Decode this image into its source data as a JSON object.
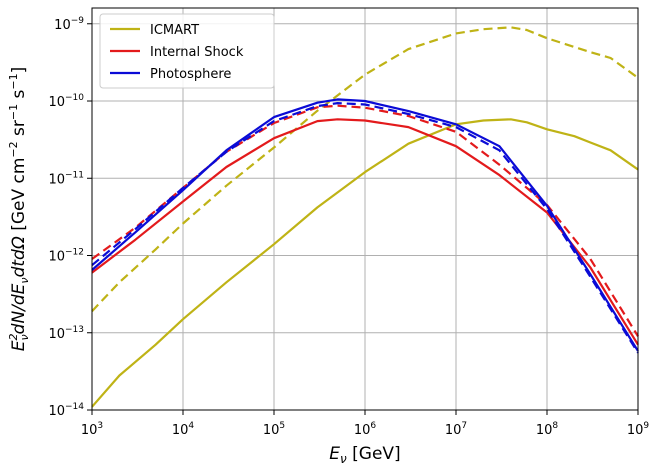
{
  "chart_data": {
    "type": "line",
    "title": "",
    "xlabel": {
      "base": "E",
      "sub": "ν",
      "rest": " [GeV]"
    },
    "ylabel": {
      "expr_a": "E",
      "expr_a_sup": "2",
      "expr_a_sub": "ν",
      "expr_b": "dN/dE",
      "expr_b_sub": "ν",
      "expr_c": "dtdΩ",
      "units_a": " [GeV cm",
      "units_a_sup": "−2",
      "units_b": " sr",
      "units_b_sup": "−1",
      "units_c": " s",
      "units_c_sup": "−1",
      "units_d": "]"
    },
    "x_scale": "log",
    "y_scale": "log",
    "xlim": [
      1000,
      1000000000
    ],
    "ylim": [
      1e-14,
      1.6e-09
    ],
    "grid": true,
    "legend_position": "top-left",
    "x_ticks": [
      {
        "value": 1000,
        "base": "10",
        "exp": "3"
      },
      {
        "value": 10000,
        "base": "10",
        "exp": "4"
      },
      {
        "value": 100000,
        "base": "10",
        "exp": "5"
      },
      {
        "value": 1000000,
        "base": "10",
        "exp": "6"
      },
      {
        "value": 10000000,
        "base": "10",
        "exp": "7"
      },
      {
        "value": 100000000,
        "base": "10",
        "exp": "8"
      },
      {
        "value": 1000000000,
        "base": "10",
        "exp": "9"
      }
    ],
    "y_ticks": [
      {
        "value": 1e-14,
        "base": "10",
        "exp": "−14"
      },
      {
        "value": 1e-13,
        "base": "10",
        "exp": "−13"
      },
      {
        "value": 1e-12,
        "base": "10",
        "exp": "−12"
      },
      {
        "value": 1e-11,
        "base": "10",
        "exp": "−11"
      },
      {
        "value": 1e-10,
        "base": "10",
        "exp": "−10"
      },
      {
        "value": 1e-09,
        "base": "10",
        "exp": "−9"
      }
    ],
    "legend": [
      {
        "label": "ICMART",
        "color": "#bfb316"
      },
      {
        "label": "Internal Shock",
        "color": "#e31a1c"
      },
      {
        "label": "Photosphere",
        "color": "#0b0bd6"
      }
    ],
    "series": [
      {
        "color": "#bfb316",
        "dash": "solid",
        "x": [
          1000,
          2000,
          5000,
          10000,
          30000,
          100000,
          300000,
          1000000,
          3000000,
          10000000,
          20000000,
          40000000,
          60000000,
          100000000,
          200000000,
          300000000,
          500000000,
          1000000000
        ],
        "y": [
          1.1e-14,
          2.8e-14,
          7e-14,
          1.5e-13,
          4.5e-13,
          1.4e-12,
          4.2e-12,
          1.2e-11,
          2.8e-11,
          5e-11,
          5.6e-11,
          5.8e-11,
          5.3e-11,
          4.3e-11,
          3.5e-11,
          2.9e-11,
          2.3e-11,
          1.3e-11
        ]
      },
      {
        "color": "#bfb316",
        "dash": "dashed",
        "x": [
          1000,
          2000,
          5000,
          10000,
          30000,
          100000,
          300000,
          1000000,
          3000000,
          10000000,
          20000000,
          40000000,
          60000000,
          100000000,
          200000000,
          300000000,
          500000000,
          1000000000
        ],
        "y": [
          1.9e-13,
          4.5e-13,
          1.2e-12,
          2.6e-12,
          8e-12,
          2.5e-11,
          7.5e-11,
          2.2e-10,
          4.7e-10,
          7.5e-10,
          8.5e-10,
          9e-10,
          8.3e-10,
          6.5e-10,
          5e-10,
          4.3e-10,
          3.6e-10,
          2e-10
        ]
      },
      {
        "color": "#e31a1c",
        "dash": "solid",
        "x": [
          1000,
          3000,
          10000,
          30000,
          100000,
          300000,
          500000,
          1000000,
          3000000,
          10000000,
          30000000,
          100000000,
          300000000,
          1000000000
        ],
        "y": [
          6e-13,
          1.6e-12,
          5e-12,
          1.4e-11,
          3.3e-11,
          5.5e-11,
          5.8e-11,
          5.6e-11,
          4.6e-11,
          2.6e-11,
          1.1e-11,
          3.6e-12,
          7e-13,
          7e-14
        ]
      },
      {
        "color": "#e31a1c",
        "dash": "dashed",
        "x": [
          1000,
          3000,
          10000,
          30000,
          100000,
          300000,
          500000,
          1000000,
          3000000,
          10000000,
          30000000,
          100000000,
          300000000,
          1000000000
        ],
        "y": [
          9e-13,
          2.3e-12,
          7.5e-12,
          2.2e-11,
          5.2e-11,
          8.3e-11,
          8.7e-11,
          8.2e-11,
          6.4e-11,
          4e-11,
          1.5e-11,
          4.5e-12,
          9e-13,
          9e-14
        ]
      },
      {
        "color": "#0b0bd6",
        "dash": "solid",
        "x": [
          1000,
          3000,
          10000,
          30000,
          100000,
          300000,
          500000,
          1000000,
          3000000,
          10000000,
          30000000,
          100000000,
          300000000,
          1000000000
        ],
        "y": [
          6.5e-13,
          2e-12,
          7e-12,
          2.3e-11,
          6.2e-11,
          9.5e-11,
          1.05e-10,
          1e-10,
          7.4e-11,
          5e-11,
          2.6e-11,
          4.4e-12,
          5.7e-13,
          5.8e-14
        ]
      },
      {
        "color": "#0b0bd6",
        "dash": "dashed",
        "x": [
          1000,
          3000,
          10000,
          30000,
          100000,
          300000,
          500000,
          1000000,
          3000000,
          10000000,
          30000000,
          100000000,
          300000000,
          1000000000
        ],
        "y": [
          7.5e-13,
          2.2e-12,
          7.5e-12,
          2.2e-11,
          5.5e-11,
          8.6e-11,
          9.4e-11,
          9e-11,
          6.8e-11,
          4.6e-11,
          2.3e-11,
          4e-12,
          5.3e-13,
          5.5e-14
        ]
      }
    ]
  }
}
